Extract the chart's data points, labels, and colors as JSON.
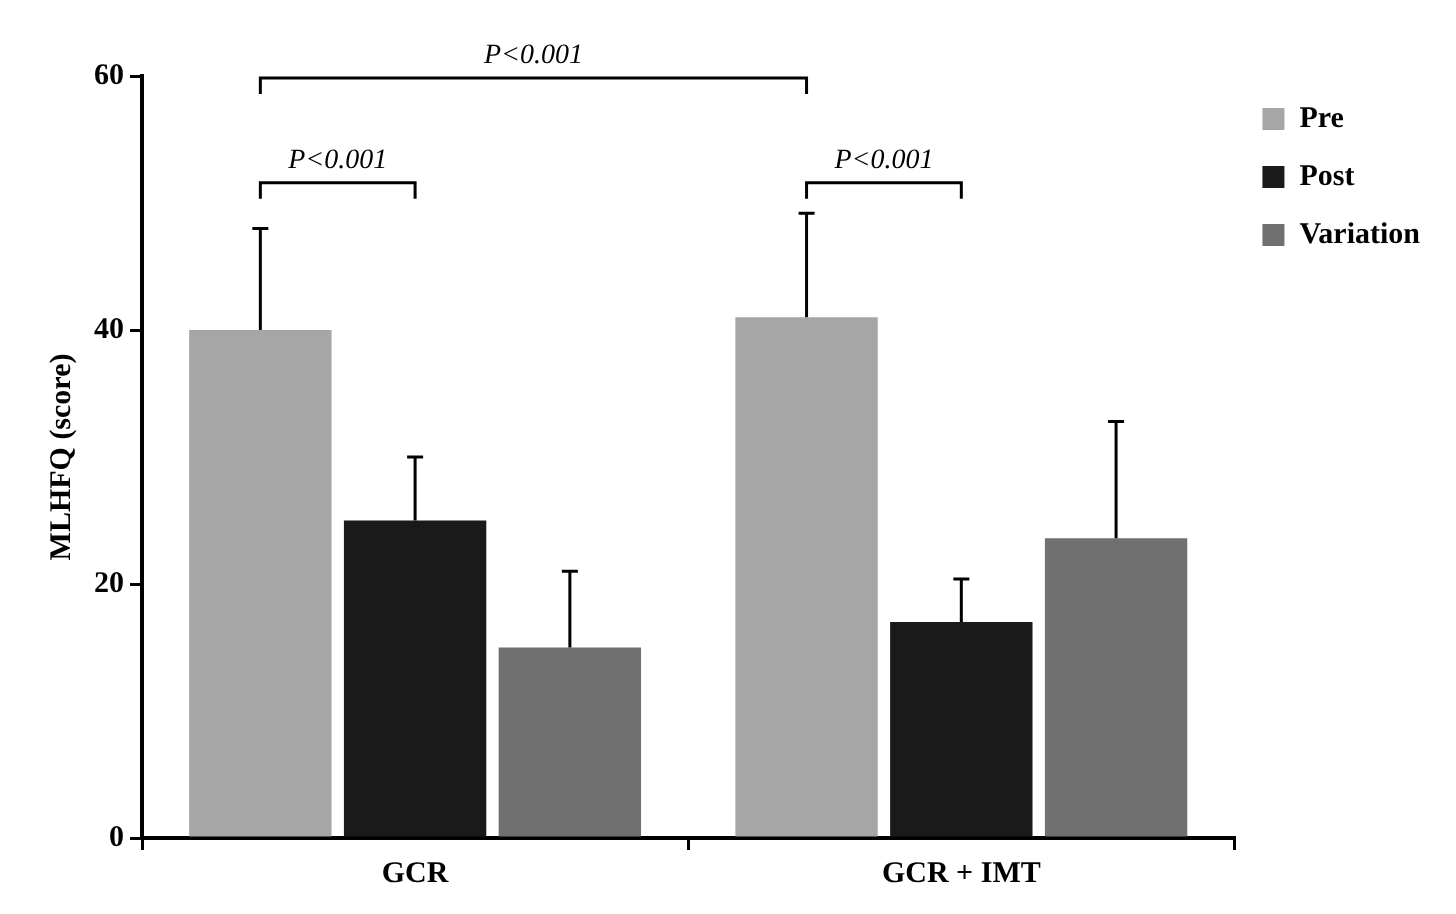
{
  "chart_data": {
    "type": "bar",
    "ylabel": "MLHFQ (score)",
    "categories": [
      "GCR",
      "GCR + IMT"
    ],
    "series": [
      {
        "name": "Pre",
        "color": "#a6a6a6",
        "values": [
          40,
          41
        ],
        "errors": [
          [
            40,
            48
          ],
          [
            41,
            49.2
          ]
        ]
      },
      {
        "name": "Post",
        "color": "#1a1a1a",
        "values": [
          25,
          17
        ],
        "errors": [
          [
            25,
            30
          ],
          [
            17,
            20.4
          ]
        ]
      },
      {
        "name": "Variation",
        "color": "#707070",
        "values": [
          15,
          23.6
        ],
        "errors": [
          [
            15,
            21
          ],
          [
            23.6,
            32.8
          ]
        ]
      }
    ],
    "ylim": [
      0,
      60
    ],
    "yticks": [
      0,
      20,
      40,
      60
    ],
    "grid": false,
    "legend": "top right",
    "annotations": [
      "P<0.001",
      "P<0.001",
      "P<0.001"
    ]
  }
}
